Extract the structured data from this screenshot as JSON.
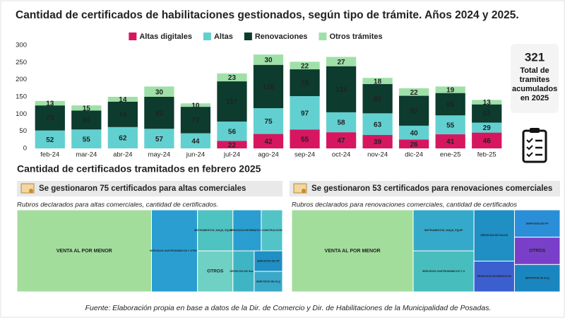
{
  "chart_data": [
    {
      "type": "bar",
      "stacked": true,
      "title": "Cantidad de certificados de habilitaciones gestionados, según tipo de trámite. Años 2024 y 2025.",
      "categories": [
        "feb-24",
        "mar-24",
        "abr-24",
        "may-24",
        "jun-24",
        "jul-24",
        "ago-24",
        "sep-24",
        "oct-24",
        "nov-24",
        "dic-24",
        "ene-25",
        "feb-25"
      ],
      "series": [
        {
          "name": "Altas digitales",
          "color": "#d6175f",
          "values": [
            null,
            null,
            null,
            null,
            null,
            22,
            42,
            55,
            47,
            39,
            26,
            41,
            46
          ]
        },
        {
          "name": "Altas",
          "color": "#62d0d0",
          "values": [
            52,
            55,
            62,
            57,
            44,
            56,
            75,
            97,
            58,
            63,
            40,
            55,
            29
          ]
        },
        {
          "name": "Renovaciones",
          "color": "#0d3b2e",
          "values": [
            73,
            55,
            74,
            93,
            77,
            117,
            126,
            78,
            134,
            85,
            87,
            65,
            53
          ]
        },
        {
          "name": "Otros trámites",
          "color": "#9fe0a8",
          "values": [
            13,
            15,
            14,
            30,
            10,
            23,
            30,
            22,
            27,
            18,
            22,
            19,
            13
          ]
        }
      ],
      "ylim": [
        0,
        300
      ],
      "yticks": [
        0,
        50,
        100,
        150,
        200,
        250,
        300
      ],
      "grid": false,
      "legend": "top"
    },
    {
      "type": "treemap",
      "title": "Rubros declarados para altas comerciales, cantidad de certificados.",
      "categories": [
        "VENTA AL POR MENOR",
        "SERVICIOS GASTRONÓMICOS Y OTROS",
        "INSTRUMENTOS, MAQS, EQUIPOS",
        "OTROS",
        "SERVICIOS INFORMÁTICOS",
        "CONSTRUCCIÓN",
        "SERVICIOS DE SALUD",
        "SERVICIOS DE FIT",
        "SERVICIOS DE ALQ"
      ],
      "values": [
        38,
        13,
        5,
        5,
        4,
        3,
        3,
        2,
        2
      ],
      "colors": [
        "#a3dd9c",
        "#2a9ed0",
        "#4fc2c2",
        "#6fd0c4",
        "#2a9ed0",
        "#52c4c8",
        "#3fb5c4",
        "#1f8fc4",
        "#3aa8c8"
      ]
    },
    {
      "type": "treemap",
      "title": "Rubros declarados para renovaciones comerciales, cantidad de certificados",
      "categories": [
        "VENTA AL POR MENOR",
        "INSTRUMENTOS, MAQS, EQUIP",
        "SERVICIOS GASTRONÓMICOS Y O",
        "SERVICIOS DE SALUD",
        "SERVICIOS INFORMÁTICOS",
        "SERVICIOS DE FIT",
        "OTROS",
        "SERVICIOS DE ALQ"
      ],
      "values": [
        24,
        6,
        6,
        5,
        3,
        3,
        3,
        3
      ],
      "colors": [
        "#a3dd9c",
        "#35a9c9",
        "#48bdbd",
        "#1f8fc4",
        "#3c5fd0",
        "#2a8fd8",
        "#7a3fc8",
        "#1a86c0"
      ]
    }
  ],
  "kpi": {
    "value": 321,
    "label": "Total de tramites acumulados en 2025"
  },
  "section_title": "Cantidad de certificados tramitados en febrero 2025",
  "banners": [
    "Se gestionaron 75 certificados para altas comerciales",
    "Se gestionaron 53 certificados para renovaciones comerciales"
  ],
  "footer": "Fuente: Elaboración propia en base a datos de la Dir. de Comercio y Dir. de Habilitaciones de la Municipalidad de Posadas."
}
